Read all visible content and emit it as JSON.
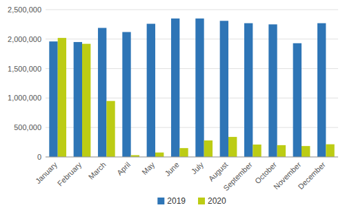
{
  "chart_data": {
    "type": "bar",
    "categories": [
      "January",
      "February",
      "March",
      "April",
      "May",
      "June",
      "July",
      "August",
      "September",
      "October",
      "November",
      "December"
    ],
    "series": [
      {
        "name": "2019",
        "color": "#2E75B6",
        "values": [
          1960000,
          1950000,
          2190000,
          2120000,
          2260000,
          2350000,
          2350000,
          2310000,
          2270000,
          2250000,
          1930000,
          2270000
        ]
      },
      {
        "name": "2020",
        "color": "#BCCC14",
        "values": [
          2020000,
          1920000,
          950000,
          30000,
          75000,
          150000,
          280000,
          340000,
          210000,
          200000,
          185000,
          215000
        ]
      }
    ],
    "ylim": [
      0,
      2500000
    ],
    "yticks": [
      0,
      {
        "value": 500000,
        "label": "500,000"
      },
      {
        "value": 1000000,
        "label": "1,000,000"
      },
      {
        "value": 1500000,
        "label": "1,500,000"
      },
      {
        "value": 2000000,
        "label": "2,000,000"
      },
      {
        "value": 2500000,
        "label": "2,500,000"
      }
    ],
    "grid": true,
    "legend": "bottom"
  }
}
